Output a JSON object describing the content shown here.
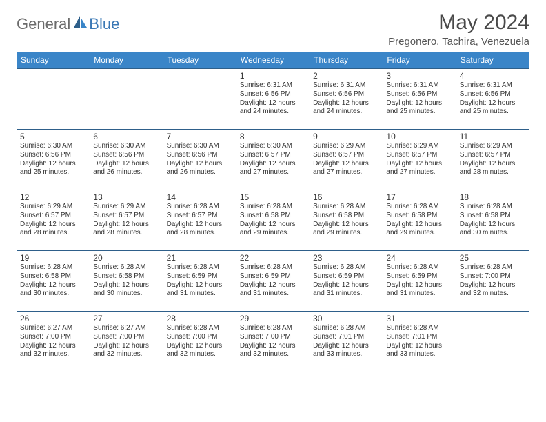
{
  "brand": {
    "general": "General",
    "blue": "Blue"
  },
  "title": "May 2024",
  "location": "Pregonero, Tachira, Venezuela",
  "colors": {
    "header_bg": "#3a85c8",
    "header_text": "#ffffff",
    "border": "#2e5f8a",
    "body_text": "#333333",
    "title_text": "#4a4a4a",
    "logo_gray": "#6b6b6b",
    "logo_blue": "#3a78b5"
  },
  "weekdays": [
    "Sunday",
    "Monday",
    "Tuesday",
    "Wednesday",
    "Thursday",
    "Friday",
    "Saturday"
  ],
  "weeks": [
    [
      null,
      null,
      null,
      {
        "d": "1",
        "sr": "Sunrise: 6:31 AM",
        "ss": "Sunset: 6:56 PM",
        "dl1": "Daylight: 12 hours",
        "dl2": "and 24 minutes."
      },
      {
        "d": "2",
        "sr": "Sunrise: 6:31 AM",
        "ss": "Sunset: 6:56 PM",
        "dl1": "Daylight: 12 hours",
        "dl2": "and 24 minutes."
      },
      {
        "d": "3",
        "sr": "Sunrise: 6:31 AM",
        "ss": "Sunset: 6:56 PM",
        "dl1": "Daylight: 12 hours",
        "dl2": "and 25 minutes."
      },
      {
        "d": "4",
        "sr": "Sunrise: 6:31 AM",
        "ss": "Sunset: 6:56 PM",
        "dl1": "Daylight: 12 hours",
        "dl2": "and 25 minutes."
      }
    ],
    [
      {
        "d": "5",
        "sr": "Sunrise: 6:30 AM",
        "ss": "Sunset: 6:56 PM",
        "dl1": "Daylight: 12 hours",
        "dl2": "and 25 minutes."
      },
      {
        "d": "6",
        "sr": "Sunrise: 6:30 AM",
        "ss": "Sunset: 6:56 PM",
        "dl1": "Daylight: 12 hours",
        "dl2": "and 26 minutes."
      },
      {
        "d": "7",
        "sr": "Sunrise: 6:30 AM",
        "ss": "Sunset: 6:56 PM",
        "dl1": "Daylight: 12 hours",
        "dl2": "and 26 minutes."
      },
      {
        "d": "8",
        "sr": "Sunrise: 6:30 AM",
        "ss": "Sunset: 6:57 PM",
        "dl1": "Daylight: 12 hours",
        "dl2": "and 27 minutes."
      },
      {
        "d": "9",
        "sr": "Sunrise: 6:29 AM",
        "ss": "Sunset: 6:57 PM",
        "dl1": "Daylight: 12 hours",
        "dl2": "and 27 minutes."
      },
      {
        "d": "10",
        "sr": "Sunrise: 6:29 AM",
        "ss": "Sunset: 6:57 PM",
        "dl1": "Daylight: 12 hours",
        "dl2": "and 27 minutes."
      },
      {
        "d": "11",
        "sr": "Sunrise: 6:29 AM",
        "ss": "Sunset: 6:57 PM",
        "dl1": "Daylight: 12 hours",
        "dl2": "and 28 minutes."
      }
    ],
    [
      {
        "d": "12",
        "sr": "Sunrise: 6:29 AM",
        "ss": "Sunset: 6:57 PM",
        "dl1": "Daylight: 12 hours",
        "dl2": "and 28 minutes."
      },
      {
        "d": "13",
        "sr": "Sunrise: 6:29 AM",
        "ss": "Sunset: 6:57 PM",
        "dl1": "Daylight: 12 hours",
        "dl2": "and 28 minutes."
      },
      {
        "d": "14",
        "sr": "Sunrise: 6:28 AM",
        "ss": "Sunset: 6:57 PM",
        "dl1": "Daylight: 12 hours",
        "dl2": "and 28 minutes."
      },
      {
        "d": "15",
        "sr": "Sunrise: 6:28 AM",
        "ss": "Sunset: 6:58 PM",
        "dl1": "Daylight: 12 hours",
        "dl2": "and 29 minutes."
      },
      {
        "d": "16",
        "sr": "Sunrise: 6:28 AM",
        "ss": "Sunset: 6:58 PM",
        "dl1": "Daylight: 12 hours",
        "dl2": "and 29 minutes."
      },
      {
        "d": "17",
        "sr": "Sunrise: 6:28 AM",
        "ss": "Sunset: 6:58 PM",
        "dl1": "Daylight: 12 hours",
        "dl2": "and 29 minutes."
      },
      {
        "d": "18",
        "sr": "Sunrise: 6:28 AM",
        "ss": "Sunset: 6:58 PM",
        "dl1": "Daylight: 12 hours",
        "dl2": "and 30 minutes."
      }
    ],
    [
      {
        "d": "19",
        "sr": "Sunrise: 6:28 AM",
        "ss": "Sunset: 6:58 PM",
        "dl1": "Daylight: 12 hours",
        "dl2": "and 30 minutes."
      },
      {
        "d": "20",
        "sr": "Sunrise: 6:28 AM",
        "ss": "Sunset: 6:58 PM",
        "dl1": "Daylight: 12 hours",
        "dl2": "and 30 minutes."
      },
      {
        "d": "21",
        "sr": "Sunrise: 6:28 AM",
        "ss": "Sunset: 6:59 PM",
        "dl1": "Daylight: 12 hours",
        "dl2": "and 31 minutes."
      },
      {
        "d": "22",
        "sr": "Sunrise: 6:28 AM",
        "ss": "Sunset: 6:59 PM",
        "dl1": "Daylight: 12 hours",
        "dl2": "and 31 minutes."
      },
      {
        "d": "23",
        "sr": "Sunrise: 6:28 AM",
        "ss": "Sunset: 6:59 PM",
        "dl1": "Daylight: 12 hours",
        "dl2": "and 31 minutes."
      },
      {
        "d": "24",
        "sr": "Sunrise: 6:28 AM",
        "ss": "Sunset: 6:59 PM",
        "dl1": "Daylight: 12 hours",
        "dl2": "and 31 minutes."
      },
      {
        "d": "25",
        "sr": "Sunrise: 6:28 AM",
        "ss": "Sunset: 7:00 PM",
        "dl1": "Daylight: 12 hours",
        "dl2": "and 32 minutes."
      }
    ],
    [
      {
        "d": "26",
        "sr": "Sunrise: 6:27 AM",
        "ss": "Sunset: 7:00 PM",
        "dl1": "Daylight: 12 hours",
        "dl2": "and 32 minutes."
      },
      {
        "d": "27",
        "sr": "Sunrise: 6:27 AM",
        "ss": "Sunset: 7:00 PM",
        "dl1": "Daylight: 12 hours",
        "dl2": "and 32 minutes."
      },
      {
        "d": "28",
        "sr": "Sunrise: 6:28 AM",
        "ss": "Sunset: 7:00 PM",
        "dl1": "Daylight: 12 hours",
        "dl2": "and 32 minutes."
      },
      {
        "d": "29",
        "sr": "Sunrise: 6:28 AM",
        "ss": "Sunset: 7:00 PM",
        "dl1": "Daylight: 12 hours",
        "dl2": "and 32 minutes."
      },
      {
        "d": "30",
        "sr": "Sunrise: 6:28 AM",
        "ss": "Sunset: 7:01 PM",
        "dl1": "Daylight: 12 hours",
        "dl2": "and 33 minutes."
      },
      {
        "d": "31",
        "sr": "Sunrise: 6:28 AM",
        "ss": "Sunset: 7:01 PM",
        "dl1": "Daylight: 12 hours",
        "dl2": "and 33 minutes."
      },
      null
    ]
  ]
}
